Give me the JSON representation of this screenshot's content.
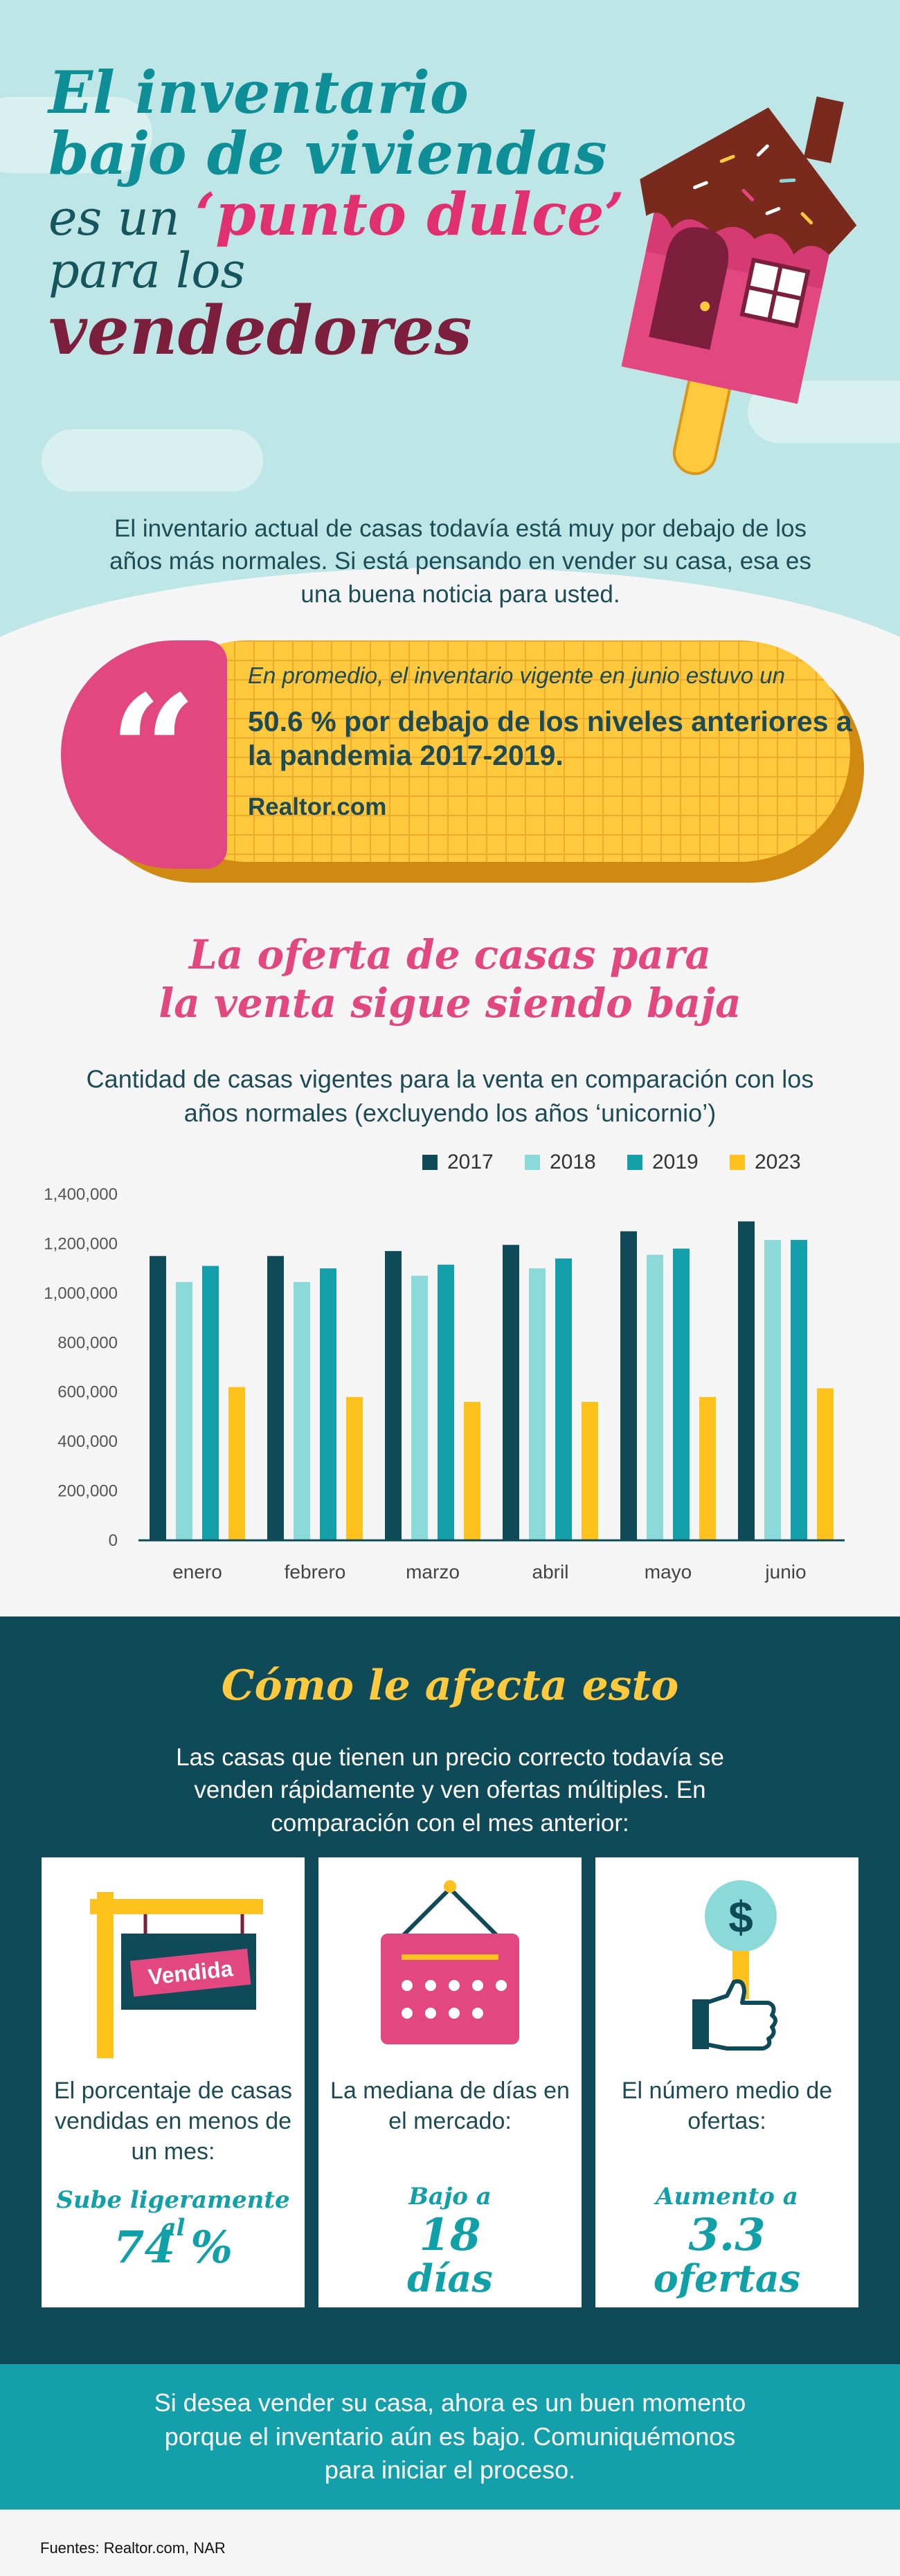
{
  "hero": {
    "title_line1": "El inventario",
    "title_line2": "bajo de viviendas",
    "title_line3a": "es un ",
    "title_line3b": "‘punto dulce’",
    "title_line4": "para los",
    "title_line5": "vendedores",
    "intro": "El inventario actual de casas todavía está muy por debajo de los años más normales. Si está pensando en vender su casa, esa es una buena noticia para usted."
  },
  "quote": {
    "mark": "“",
    "intro": "En promedio, el inventario vigente en junio estuvo un",
    "strong": "50.6 % por debajo de los niveles anteriores a la pandemia 2017-2019.",
    "source": "Realtor.com"
  },
  "chart_section": {
    "heading_line1": "La oferta de casas para",
    "heading_line2": "la venta sigue siendo baja",
    "subtitle": "Cantidad de casas vigentes para la venta en comparación con los años normales (excluyendo los años ‘unicornio’)"
  },
  "chart_data": {
    "type": "bar",
    "categories": [
      "enero",
      "febrero",
      "marzo",
      "abril",
      "mayo",
      "junio"
    ],
    "series": [
      {
        "name": "2017",
        "values": [
          1150000,
          1150000,
          1170000,
          1195000,
          1250000,
          1290000
        ]
      },
      {
        "name": "2018",
        "values": [
          1045000,
          1045000,
          1070000,
          1100000,
          1155000,
          1215000
        ]
      },
      {
        "name": "2019",
        "values": [
          1110000,
          1100000,
          1115000,
          1140000,
          1180000,
          1215000
        ]
      },
      {
        "name": "2023",
        "values": [
          620000,
          580000,
          560000,
          560000,
          580000,
          615000
        ]
      }
    ],
    "ylim": [
      0,
      1400000
    ],
    "yticks": [
      "0",
      "200,000",
      "400,000",
      "600,000",
      "800,000",
      "1,000,000",
      "1,200,000",
      "1,400,000"
    ],
    "legend_position": "top-right",
    "colors": [
      "#0f4a59",
      "#8cd9d9",
      "#14a0aa",
      "#ffc21d"
    ]
  },
  "affect": {
    "title": "Cómo le afecta esto",
    "subtitle": "Las casas que tienen un precio correcto todavía se venden rápidamente y ven ofertas múltiples. En comparación con el mes anterior:",
    "cards": [
      {
        "icon": "for-sale-sign-icon",
        "sign_label": "Vendida",
        "desc": "El porcentaje de casas vendidas en menos de un mes:",
        "small": "Sube ligeramente al",
        "big": "74 %"
      },
      {
        "icon": "calendar-icon",
        "desc": "La mediana de días en el mercado:",
        "small": "Bajo a",
        "big": "18",
        "big2": "días"
      },
      {
        "icon": "dollar-thumbs-up-icon",
        "coin_symbol": "$",
        "desc": "El número medio de ofertas:",
        "small": "Aumento a",
        "big": "3.3",
        "big2": "ofertas"
      }
    ]
  },
  "cta": {
    "text": "Si desea vender su casa, ahora es un buen momento porque el inventario aún es bajo. Comuniquémonos para iniciar el proceso."
  },
  "sources": "Fuentes: Realtor.com, NAR"
}
